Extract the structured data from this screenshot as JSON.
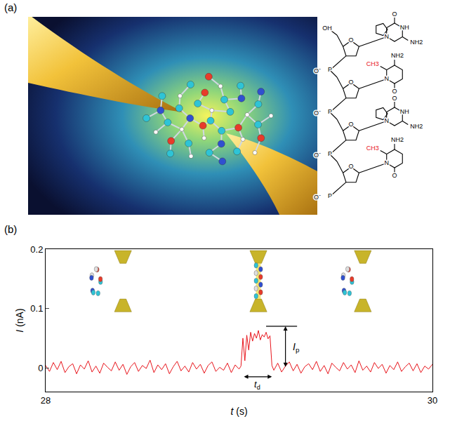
{
  "panel_labels": [
    "(a)",
    "(b)"
  ],
  "structure": {
    "hydroxyl": "OH",
    "ring_oxygen": "O",
    "phosphate": "P",
    "phosphate_charge": "O⁻",
    "purine": {
      "amine": "NH2",
      "carbonyl": "O",
      "nitrogen": "N",
      "imine": "NH"
    },
    "pyrimidine": {
      "amine": "NH2",
      "carbonyl": "O",
      "nitrogen": "N",
      "methyl": "CH3",
      "methyl_color": "#e8141b"
    }
  },
  "chart_data": {
    "type": "line",
    "color": "#e8141b",
    "xlabel": "t (s)",
    "ylabel": "I (nA)",
    "xlim": [
      28,
      30
    ],
    "xticks": [
      28,
      30
    ],
    "ylim": [
      -0.04,
      0.2
    ],
    "yticks": [
      0,
      0.1,
      0.2
    ],
    "grid": false,
    "x": [
      28,
      28.02,
      28.04,
      28.06,
      28.08,
      28.1,
      28.12,
      28.14,
      28.16,
      28.18,
      28.2,
      28.22,
      28.24,
      28.26,
      28.28,
      28.3,
      28.32,
      28.34,
      28.36,
      28.38,
      28.4,
      28.42,
      28.44,
      28.46,
      28.48,
      28.5,
      28.52,
      28.54,
      28.56,
      28.58,
      28.6,
      28.62,
      28.64,
      28.66,
      28.68,
      28.7,
      28.72,
      28.74,
      28.76,
      28.78,
      28.8,
      28.82,
      28.84,
      28.86,
      28.88,
      28.9,
      28.92,
      28.94,
      28.96,
      28.98,
      29,
      29.01,
      29.02,
      29.03,
      29.04,
      29.05,
      29.06,
      29.07,
      29.08,
      29.09,
      29.1,
      29.11,
      29.12,
      29.13,
      29.14,
      29.15,
      29.16,
      29.17,
      29.18,
      29.2,
      29.22,
      29.24,
      29.26,
      29.28,
      29.3,
      29.32,
      29.34,
      29.36,
      29.38,
      29.4,
      29.42,
      29.44,
      29.46,
      29.48,
      29.5,
      29.52,
      29.54,
      29.56,
      29.58,
      29.6,
      29.62,
      29.64,
      29.66,
      29.68,
      29.7,
      29.72,
      29.74,
      29.76,
      29.78,
      29.8,
      29.82,
      29.84,
      29.86,
      29.88,
      29.9,
      29.92,
      29.94,
      29.96,
      29.98,
      30
    ],
    "values": [
      0.004,
      -0.006,
      0.009,
      -0.003,
      0.011,
      -0.008,
      0.002,
      0.007,
      -0.01,
      0.005,
      -0.002,
      0.012,
      -0.007,
      0.003,
      -0.009,
      0.008,
      0.001,
      -0.005,
      0.01,
      -0.004,
      0.006,
      -0.011,
      0.002,
      0.009,
      -0.006,
      0.004,
      -0.001,
      0.013,
      -0.008,
      0.005,
      -0.003,
      0.007,
      -0.01,
      0.002,
      0.011,
      -0.005,
      0.003,
      -0.007,
      0.009,
      -0.002,
      0.006,
      -0.009,
      0.004,
      0.01,
      -0.006,
      0.001,
      -0.004,
      0.008,
      -0.008,
      0.005,
      -0.002,
      0.003,
      0.05,
      0.012,
      0.055,
      0.03,
      0.06,
      0.045,
      0.058,
      0.05,
      0.063,
      0.047,
      0.056,
      0.052,
      0.06,
      0.049,
      0.054,
      0.004,
      -0.004,
      0.008,
      -0.007,
      0.003,
      0.01,
      -0.005,
      0.006,
      -0.009,
      0.002,
      0.007,
      -0.003,
      0.011,
      -0.006,
      0.004,
      -0.01,
      0.008,
      0.001,
      -0.005,
      0.009,
      -0.002,
      0.005,
      -0.008,
      0.012,
      -0.004,
      0.003,
      -0.007,
      0.009,
      -0.001,
      0.006,
      -0.009,
      0.004,
      -0.003,
      0.01,
      -0.006,
      0.002,
      0.008,
      -0.005,
      0.007,
      -0.008,
      0.003,
      -0.002,
      0.006
    ],
    "ip_marker": {
      "x": 29.24,
      "y0": 0,
      "y1": 0.07,
      "x0": 29.14,
      "x1": 29.3,
      "label": {
        "text": "I",
        "subscript": "p"
      }
    },
    "td_marker": {
      "x0": 29.02,
      "x1": 29.17,
      "y": -0.015,
      "label": {
        "text": "t",
        "subscript": "d"
      }
    }
  }
}
